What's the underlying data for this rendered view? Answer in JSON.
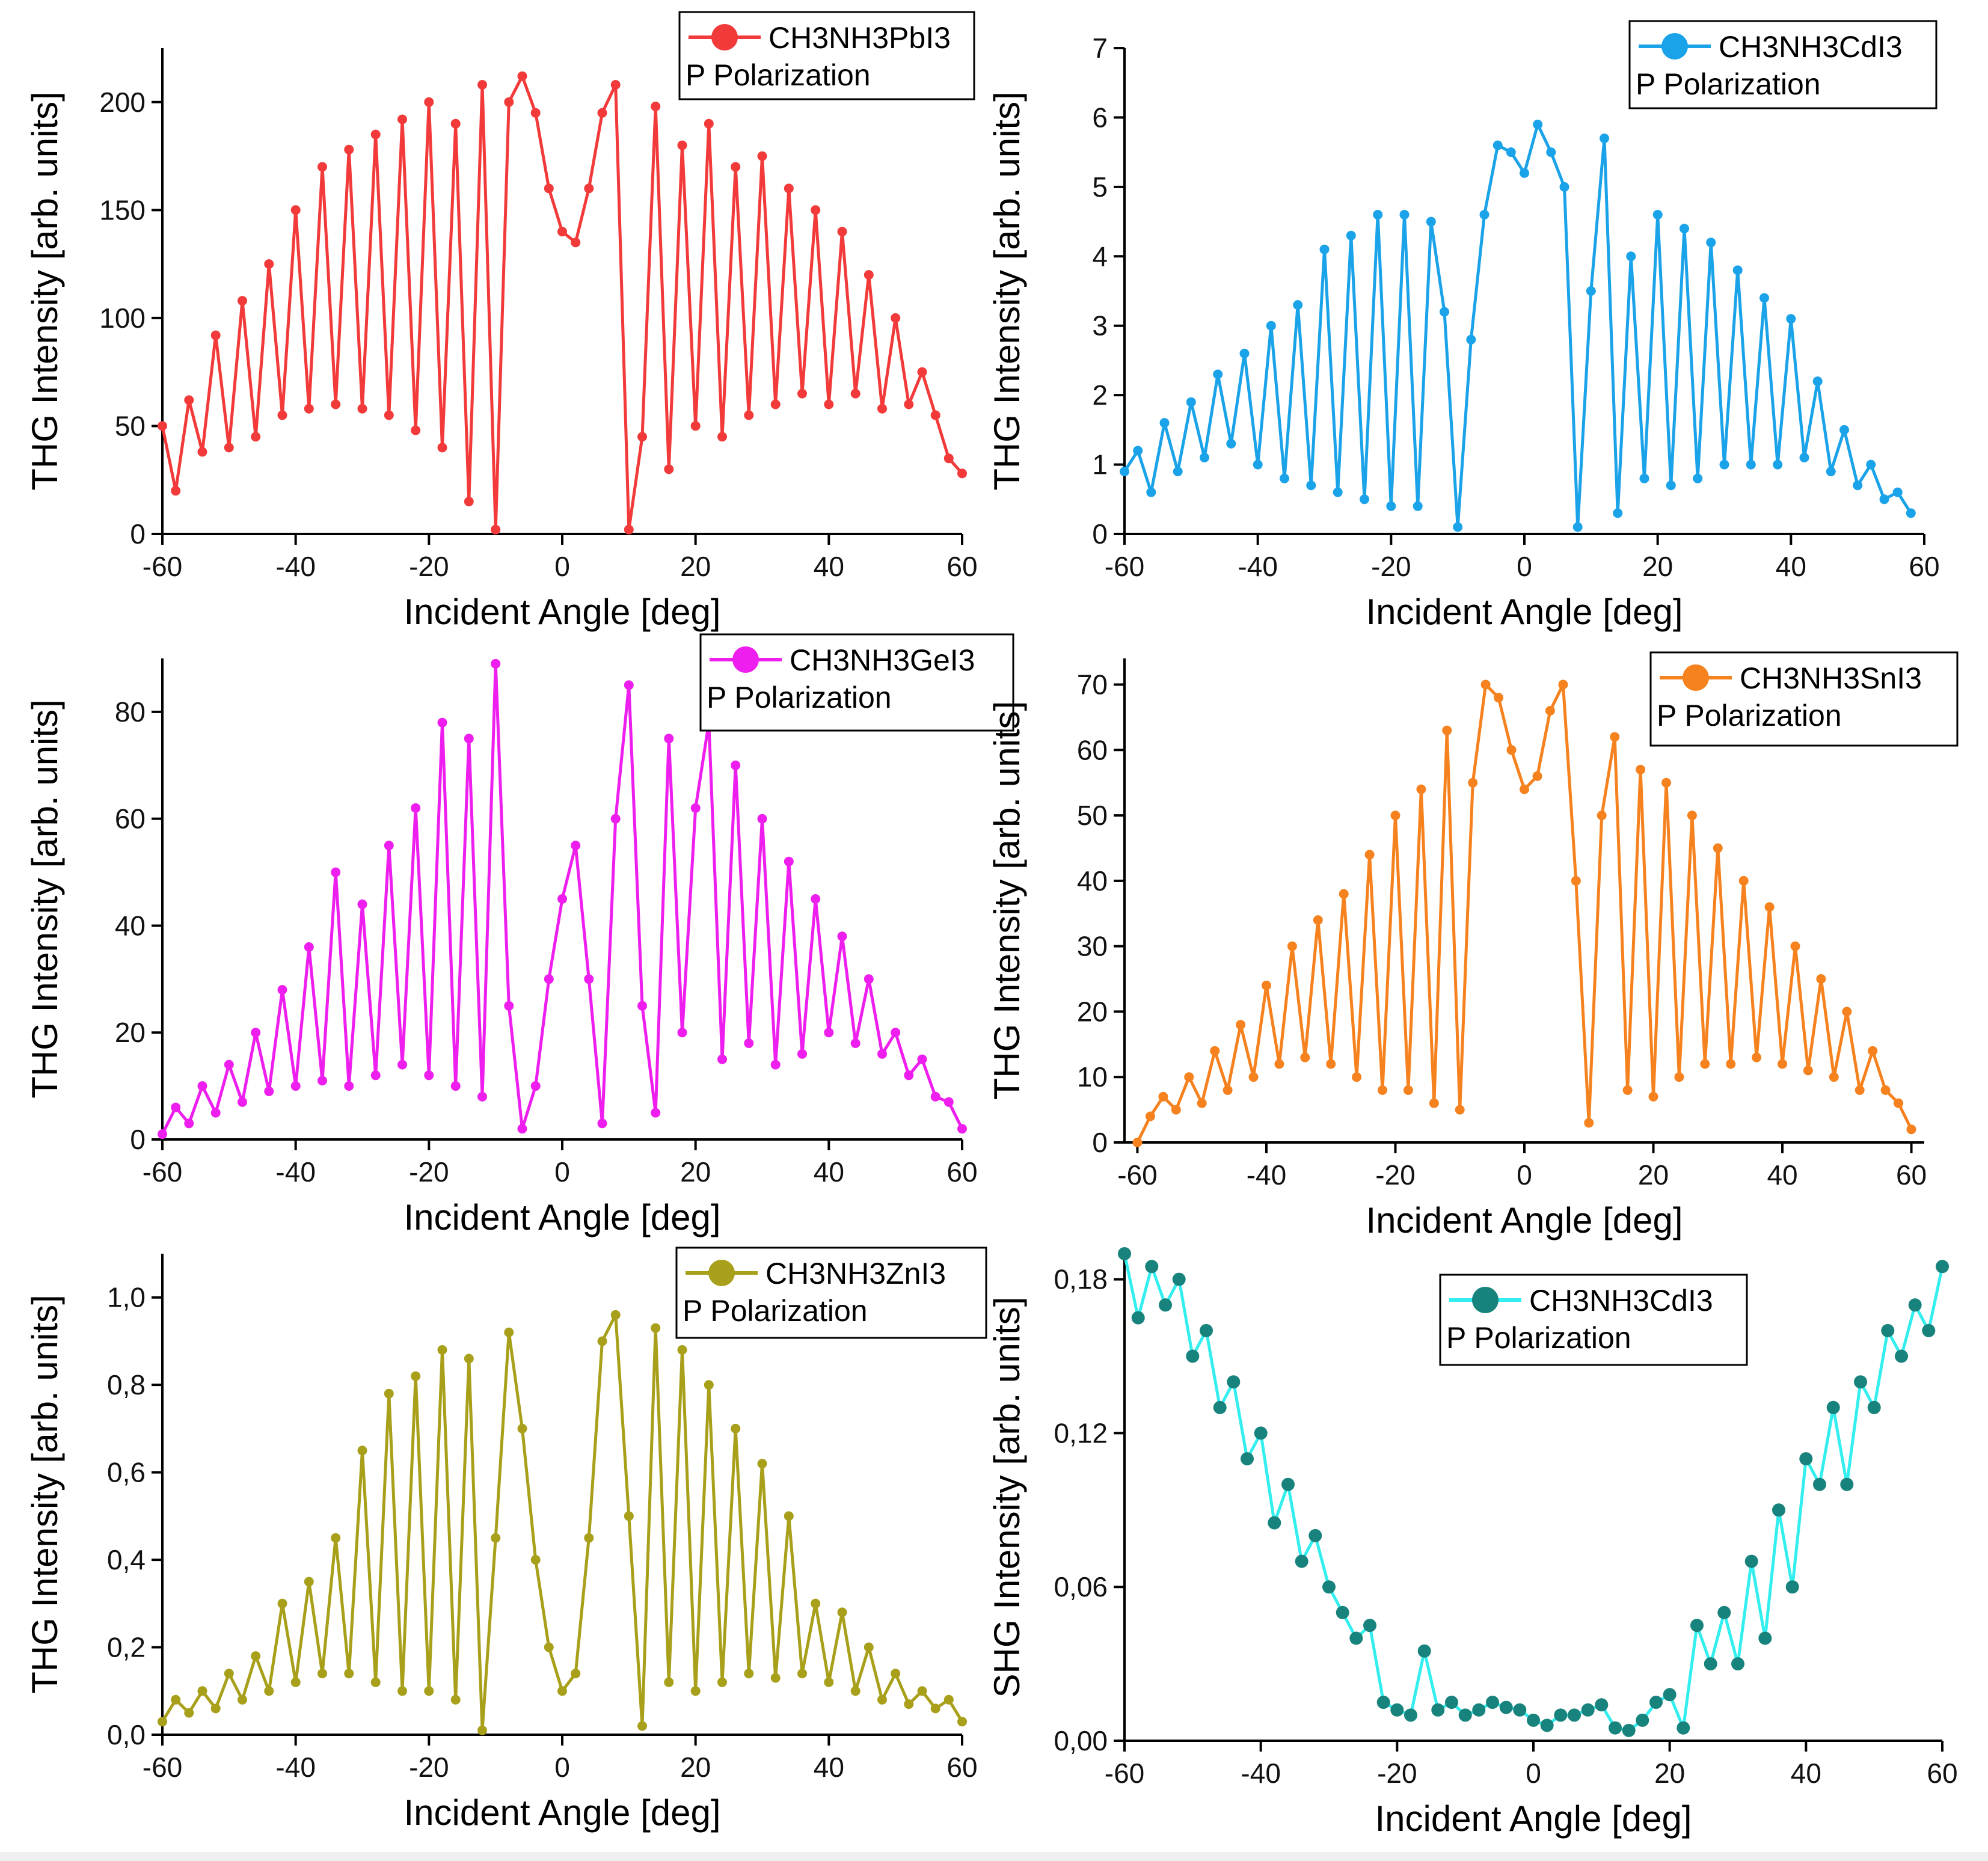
{
  "chart_data": [
    {
      "type": "line",
      "legend": {
        "series_name": "CH3NH3PbI3",
        "note": "P Polarization",
        "placement": "top-right"
      },
      "xlabel": "Incident Angle [deg]",
      "ylabel": "THG Intensity [arb. units]",
      "xlim": [
        -60,
        60
      ],
      "ylim": [
        0,
        225
      ],
      "xticks": [
        -60,
        -40,
        -20,
        0,
        20,
        40,
        60
      ],
      "xtick_labels": [
        "-60",
        "-40",
        "-20",
        "0",
        "20",
        "40",
        "60"
      ],
      "yticks": [
        0,
        50,
        100,
        150,
        200
      ],
      "ytick_labels": [
        "0",
        "50",
        "100",
        "150",
        "200"
      ],
      "color": "#f23a3a",
      "series": [
        {
          "name": "CH3NH3PbI3",
          "x": [
            -60,
            -58,
            -56,
            -54,
            -52,
            -50,
            -48,
            -46,
            -44,
            -42,
            -40,
            -38,
            -36,
            -34,
            -32,
            -30,
            -28,
            -26,
            -24,
            -22,
            -20,
            -18,
            -16,
            -14,
            -12,
            -10,
            -8,
            -6,
            -4,
            -2,
            0,
            2,
            4,
            6,
            8,
            10,
            12,
            14,
            16,
            18,
            20,
            22,
            24,
            26,
            28,
            30,
            32,
            34,
            36,
            38,
            40,
            42,
            44,
            46,
            48,
            50,
            52,
            54,
            56,
            58,
            60
          ],
          "values": [
            50,
            20,
            62,
            38,
            92,
            40,
            108,
            45,
            125,
            55,
            150,
            58,
            170,
            60,
            178,
            58,
            185,
            55,
            192,
            48,
            200,
            40,
            190,
            15,
            208,
            2,
            200,
            212,
            195,
            160,
            140,
            135,
            160,
            195,
            208,
            2,
            45,
            198,
            30,
            180,
            50,
            190,
            45,
            170,
            55,
            175,
            60,
            160,
            65,
            150,
            60,
            140,
            65,
            120,
            58,
            100,
            60,
            75,
            55,
            35,
            28
          ]
        }
      ]
    },
    {
      "type": "line",
      "legend": {
        "series_name": "CH3NH3CdI3",
        "note": "P Polarization",
        "placement": "top-right"
      },
      "xlabel": "Incident Angle [deg]",
      "ylabel": "THG Intensity [arb. units]",
      "xlim": [
        -60,
        60
      ],
      "ylim": [
        0,
        7
      ],
      "xticks": [
        -60,
        -40,
        -20,
        0,
        20,
        40,
        60
      ],
      "xtick_labels": [
        "-60",
        "-40",
        "-20",
        "0",
        "20",
        "40",
        "60"
      ],
      "yticks": [
        0,
        1,
        2,
        3,
        4,
        5,
        6,
        7
      ],
      "ytick_labels": [
        "0",
        "1",
        "2",
        "3",
        "4",
        "5",
        "6",
        "7"
      ],
      "color": "#1aa3e8",
      "series": [
        {
          "name": "CH3NH3CdI3",
          "x": [
            -60,
            -58,
            -56,
            -54,
            -52,
            -50,
            -48,
            -46,
            -44,
            -42,
            -40,
            -38,
            -36,
            -34,
            -32,
            -30,
            -28,
            -26,
            -24,
            -22,
            -20,
            -18,
            -16,
            -14,
            -12,
            -10,
            -8,
            -6,
            -4,
            -2,
            0,
            2,
            4,
            6,
            8,
            10,
            12,
            14,
            16,
            18,
            20,
            22,
            24,
            26,
            28,
            30,
            32,
            34,
            36,
            38,
            40,
            42,
            44,
            46,
            48,
            50,
            52,
            54,
            56,
            58
          ],
          "values": [
            0.9,
            1.2,
            0.6,
            1.6,
            0.9,
            1.9,
            1.1,
            2.3,
            1.3,
            2.6,
            1.0,
            3.0,
            0.8,
            3.3,
            0.7,
            4.1,
            0.6,
            4.3,
            0.5,
            4.6,
            0.4,
            4.6,
            0.4,
            4.5,
            3.2,
            0.1,
            2.8,
            4.6,
            5.6,
            5.5,
            5.2,
            5.9,
            5.5,
            5.0,
            0.1,
            3.5,
            5.7,
            0.3,
            4.0,
            0.8,
            4.6,
            0.7,
            4.4,
            0.8,
            4.2,
            1.0,
            3.8,
            1.0,
            3.4,
            1.0,
            3.1,
            1.1,
            2.2,
            0.9,
            1.5,
            0.7,
            1.0,
            0.5,
            0.6,
            0.3
          ]
        }
      ]
    },
    {
      "type": "line",
      "legend": {
        "series_name": "CH3NH3GeI3",
        "note": "P Polarization",
        "placement": "top-right"
      },
      "xlabel": "Incident Angle [deg]",
      "ylabel": "THG Intensity [arb. units]",
      "xlim": [
        -60,
        60
      ],
      "ylim": [
        0,
        90
      ],
      "xticks": [
        -60,
        -40,
        -20,
        0,
        20,
        40,
        60
      ],
      "xtick_labels": [
        "-60",
        "-40",
        "-20",
        "0",
        "20",
        "40",
        "60"
      ],
      "yticks": [
        0,
        20,
        40,
        60,
        80
      ],
      "ytick_labels": [
        "0",
        "20",
        "40",
        "60",
        "80"
      ],
      "color": "#ee1fee",
      "series": [
        {
          "name": "CH3NH3GeI3",
          "x": [
            -60,
            -58,
            -56,
            -54,
            -52,
            -50,
            -48,
            -46,
            -44,
            -42,
            -40,
            -38,
            -36,
            -34,
            -32,
            -30,
            -28,
            -26,
            -24,
            -22,
            -20,
            -18,
            -16,
            -14,
            -12,
            -10,
            -8,
            -6,
            -4,
            -2,
            0,
            2,
            4,
            6,
            8,
            10,
            12,
            14,
            16,
            18,
            20,
            22,
            24,
            26,
            28,
            30,
            32,
            34,
            36,
            38,
            40,
            42,
            44,
            46,
            48,
            50,
            52,
            54,
            56,
            58,
            60
          ],
          "values": [
            1,
            6,
            3,
            10,
            5,
            14,
            7,
            20,
            9,
            28,
            10,
            36,
            11,
            50,
            10,
            44,
            12,
            55,
            14,
            62,
            12,
            78,
            10,
            75,
            8,
            89,
            25,
            2,
            10,
            30,
            45,
            55,
            30,
            3,
            60,
            85,
            25,
            5,
            75,
            20,
            62,
            78,
            15,
            70,
            18,
            60,
            14,
            52,
            16,
            45,
            20,
            38,
            18,
            30,
            16,
            20,
            12,
            15,
            8,
            7,
            2
          ]
        }
      ]
    },
    {
      "type": "line",
      "legend": {
        "series_name": "CH3NH3SnI3",
        "note": "P Polarization",
        "placement": "top-right"
      },
      "xlabel": "Incident Angle [deg]",
      "ylabel": "THG Intensity [arb. units]",
      "xlim": [
        -62,
        62
      ],
      "ylim": [
        0,
        74
      ],
      "xticks": [
        -60,
        -40,
        -20,
        0,
        20,
        40,
        60
      ],
      "xtick_labels": [
        "-60",
        "-40",
        "-20",
        "0",
        "20",
        "40",
        "60"
      ],
      "yticks": [
        0,
        10,
        20,
        30,
        40,
        50,
        60,
        70
      ],
      "ytick_labels": [
        "0",
        "10",
        "20",
        "30",
        "40",
        "50",
        "60",
        "70"
      ],
      "color": "#f5821f",
      "series": [
        {
          "name": "CH3NH3SnI3",
          "x": [
            -60,
            -58,
            -56,
            -54,
            -52,
            -50,
            -48,
            -46,
            -44,
            -42,
            -40,
            -38,
            -36,
            -34,
            -32,
            -30,
            -28,
            -26,
            -24,
            -22,
            -20,
            -18,
            -16,
            -14,
            -12,
            -10,
            -8,
            -6,
            -4,
            -2,
            0,
            2,
            4,
            6,
            8,
            10,
            12,
            14,
            16,
            18,
            20,
            22,
            24,
            26,
            28,
            30,
            32,
            34,
            36,
            38,
            40,
            42,
            44,
            46,
            48,
            50,
            52,
            54,
            56,
            58,
            60
          ],
          "values": [
            0,
            4,
            7,
            5,
            10,
            6,
            14,
            8,
            18,
            10,
            24,
            12,
            30,
            13,
            34,
            12,
            38,
            10,
            44,
            8,
            50,
            8,
            54,
            6,
            63,
            5,
            55,
            70,
            68,
            60,
            54,
            56,
            66,
            70,
            40,
            3,
            50,
            62,
            8,
            57,
            7,
            55,
            10,
            50,
            12,
            45,
            12,
            40,
            13,
            36,
            12,
            30,
            11,
            25,
            10,
            20,
            8,
            14,
            8,
            6,
            2
          ]
        }
      ]
    },
    {
      "type": "line",
      "legend": {
        "series_name": "CH3NH3ZnI3",
        "note": "P Polarization",
        "placement": "top-right"
      },
      "xlabel": "Incident Angle [deg]",
      "ylabel": "THG Intensity [arb. units]",
      "xlim": [
        -60,
        60
      ],
      "ylim": [
        0,
        1.1
      ],
      "xticks": [
        -60,
        -40,
        -20,
        0,
        20,
        40,
        60
      ],
      "xtick_labels": [
        "-60",
        "-40",
        "-20",
        "0",
        "20",
        "40",
        "60"
      ],
      "yticks": [
        0,
        0.2,
        0.4,
        0.6,
        0.8,
        1.0
      ],
      "ytick_labels": [
        "0,0",
        "0,2",
        "0,4",
        "0,6",
        "0,8",
        "1,0"
      ],
      "color": "#a8a01a",
      "series": [
        {
          "name": "CH3NH3ZnI3",
          "x": [
            -60,
            -58,
            -56,
            -54,
            -52,
            -50,
            -48,
            -46,
            -44,
            -42,
            -40,
            -38,
            -36,
            -34,
            -32,
            -30,
            -28,
            -26,
            -24,
            -22,
            -20,
            -18,
            -16,
            -14,
            -12,
            -10,
            -8,
            -6,
            -4,
            -2,
            0,
            2,
            4,
            6,
            8,
            10,
            12,
            14,
            16,
            18,
            20,
            22,
            24,
            26,
            28,
            30,
            32,
            34,
            36,
            38,
            40,
            42,
            44,
            46,
            48,
            50,
            52,
            54,
            56,
            58,
            60
          ],
          "values": [
            0.03,
            0.08,
            0.05,
            0.1,
            0.06,
            0.14,
            0.08,
            0.18,
            0.1,
            0.3,
            0.12,
            0.35,
            0.14,
            0.45,
            0.14,
            0.65,
            0.12,
            0.78,
            0.1,
            0.82,
            0.1,
            0.88,
            0.08,
            0.86,
            0.01,
            0.45,
            0.92,
            0.7,
            0.4,
            0.2,
            0.1,
            0.14,
            0.45,
            0.9,
            0.96,
            0.5,
            0.02,
            0.93,
            0.12,
            0.88,
            0.1,
            0.8,
            0.12,
            0.7,
            0.14,
            0.62,
            0.13,
            0.5,
            0.14,
            0.3,
            0.12,
            0.28,
            0.1,
            0.2,
            0.08,
            0.14,
            0.07,
            0.1,
            0.06,
            0.08,
            0.03
          ]
        }
      ]
    },
    {
      "type": "scatter",
      "legend": {
        "series_name": "CH3NH3CdI3",
        "note": "P Polarization",
        "placement": "top-center"
      },
      "xlabel": "Incident Angle [deg]",
      "ylabel": "SHG Intensity [arb. units]",
      "xlim": [
        -60,
        60
      ],
      "ylim": [
        0,
        0.19
      ],
      "xticks": [
        -60,
        -40,
        -20,
        0,
        20,
        40,
        60
      ],
      "xtick_labels": [
        "-60",
        "-40",
        "-20",
        "0",
        "20",
        "40",
        "60"
      ],
      "yticks": [
        0,
        0.06,
        0.12,
        0.18
      ],
      "ytick_labels": [
        "0,00",
        "0,06",
        "0,12",
        "0,18"
      ],
      "color": "#17837c",
      "line_color": "#33eeee",
      "series": [
        {
          "name": "CH3NH3CdI3",
          "x": [
            -60,
            -58,
            -56,
            -54,
            -52,
            -50,
            -48,
            -46,
            -44,
            -42,
            -40,
            -38,
            -36,
            -34,
            -32,
            -30,
            -28,
            -26,
            -24,
            -22,
            -20,
            -18,
            -16,
            -14,
            -12,
            -10,
            -8,
            -6,
            -4,
            -2,
            0,
            2,
            4,
            6,
            8,
            10,
            12,
            14,
            16,
            18,
            20,
            22,
            24,
            26,
            28,
            30,
            32,
            34,
            36,
            38,
            40,
            42,
            44,
            46,
            48,
            50,
            52,
            54,
            56,
            58,
            60
          ],
          "values": [
            0.19,
            0.165,
            0.185,
            0.17,
            0.18,
            0.15,
            0.16,
            0.13,
            0.14,
            0.11,
            0.12,
            0.085,
            0.1,
            0.07,
            0.08,
            0.06,
            0.05,
            0.04,
            0.045,
            0.015,
            0.012,
            0.01,
            0.035,
            0.012,
            0.015,
            0.01,
            0.012,
            0.015,
            0.013,
            0.012,
            0.008,
            0.006,
            0.01,
            0.01,
            0.012,
            0.014,
            0.005,
            0.004,
            0.008,
            0.015,
            0.018,
            0.005,
            0.045,
            0.03,
            0.05,
            0.03,
            0.07,
            0.04,
            0.09,
            0.06,
            0.11,
            0.1,
            0.13,
            0.1,
            0.14,
            0.13,
            0.16,
            0.15,
            0.17,
            0.16,
            0.185
          ]
        }
      ]
    }
  ]
}
